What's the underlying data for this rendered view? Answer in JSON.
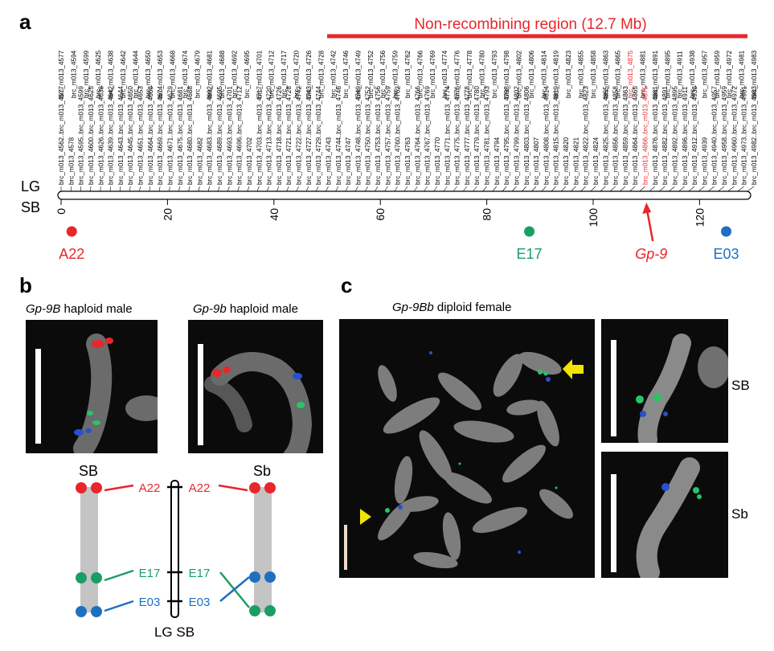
{
  "panels": {
    "a": "a",
    "b": "b",
    "c": "c"
  },
  "panel_a": {
    "region_label": "Non-recombining region (12.7 Mb)",
    "lg_label": "LG",
    "sb_label": "SB",
    "ticks": [
      "0",
      "20",
      "40",
      "60",
      "80",
      "100",
      "120"
    ],
    "markers_top_row": [
      "brc_m013_4577",
      "brc_m013_4594",
      "brc_m013_4599",
      "brc_m013_4625",
      "brc_m013_4638",
      "brc_m013_4642",
      "brc_m013_4644",
      "brc_m013_4650",
      "brc_m013_4653",
      "brc_m013_4668",
      "brc_m013_4674",
      "brc_m013_4679",
      "brc_m013_4681",
      "brc_m013_4688",
      "brc_m013_4692",
      "brc_m013_4695",
      "brc_m013_4701",
      "brc_m013_4712",
      "brc_m013_4717",
      "brc_m013_4720",
      "brc_m013_4726",
      "brc_m013_4728",
      "brc_m013_4742",
      "brc_m013_4746",
      "brc_m013_4749",
      "brc_m013_4752",
      "brc_m013_4756",
      "brc_m013_4759",
      "brc_m013_4762",
      "brc_m013_4766",
      "brc_m013_4769",
      "brc_m013_4774",
      "brc_m013_4776",
      "brc_m013_4778",
      "brc_m013_4780",
      "brc_m013_4793",
      "brc_m013_4798",
      "brc_m013_4802",
      "brc_m013_4806",
      "brc_m013_4814",
      "brc_m013_4819",
      "brc_m013_4823",
      "brc_m013_4855",
      "brc_m013_4858",
      "brc_m013_4863",
      "brc_m013_4865",
      "brc_m013_4875",
      "brc_m013_4881",
      "brc_m013_4891",
      "brc_m013_4895",
      "brc_m013_4911",
      "brc_m013_4938",
      "brc_m013_4957",
      "brc_m013_4959",
      "brc_m013_4972",
      "brc_m013_4981",
      "brc_m013_4983"
    ],
    "markers_bottom_row": [
      "brc_m013_4562..brc_m013_4577",
      "brc_m013_4578",
      "brc_m013_4595..brc_m013_4599",
      "brc_m013_4600..brc_m013_4625",
      "brc_m013_4626..brc_m013_4638",
      "brc_m013_4639..brc_m013_4642",
      "brc_m013_4643..brc_m013_4644",
      "brc_m013_4645..brc_m013_4650",
      "brc_m013_4651..brc_m013_4653",
      "brc_m013_4664..brc_m013_4668",
      "brc_m013_4669..brc_m013_4674",
      "brc_m013_4671..brc_m013_4679",
      "brc_m013_4675..brc_m013_4681",
      "brc_m013_4680..brc_m013_4688",
      "brc_m013_4682",
      "brc_m013_4683..brc_m013_4692",
      "brc_m013_4689..brc_m013_4695",
      "brc_m013_4693..brc_m013_4701",
      "brc_m013_4696..brc_m013_4712",
      "brc_m013_4702",
      "brc_m013_4703..brc_m013_4717",
      "brc_m013_4713..brc_m013_4720",
      "brc_m013_4718..brc_m013_4726",
      "brc_m013_4721..brc_m013_4728",
      "brc_m013_4722..brc_m013_4742",
      "brc_m013_4727..brc_m013_4743",
      "brc_m013_4729..brc_m013_4744",
      "brc_m013_4743",
      "brc_m013_4744..brc_m013_4746",
      "brc_m013_4747",
      "brc_m013_4748..brc_m013_4749",
      "brc_m013_4750..brc_m013_4752",
      "brc_m013_4753..brc_m013_4756",
      "brc_m013_4757..brc_m013_4759",
      "brc_m013_4760..brc_m013_4762",
      "brc_m013_4763",
      "brc_m013_4764..brc_m013_4766",
      "brc_m013_4767..brc_m013_4769",
      "brc_m013_4770",
      "brc_m013_4771..brc_m013_4774",
      "brc_m013_4775..brc_m013_4776",
      "brc_m013_4777..brc_m013_4778",
      "brc_m013_4779..brc_m013_4780",
      "brc_m013_4781..brc_m013_4793",
      "brc_m013_4794",
      "brc_m013_4795..brc_m013_4798",
      "brc_m013_4799..brc_m013_4802",
      "brc_m013_4803..brc_m013_4806",
      "brc_m013_4807",
      "brc_m013_4808..brc_m013_4814",
      "brc_m013_4815..brc_m013_4819",
      "brc_m013_4820",
      "brc_m013_4821",
      "brc_m013_4822..brc_m013_4823",
      "brc_m013_4824",
      "brc_m013_4825..brc_m013_4855",
      "brc_m013_4856..brc_m013_4858",
      "brc_m013_4859..brc_m013_4863",
      "brc_m013_4864..brc_m013_4865",
      "brc_m013_4866..brc_m013_4875",
      "brc_m013_4876..brc_m013_4881",
      "brc_m013_4882..brc_m013_4891",
      "brc_m013_4892..brc_m013_4895",
      "brc_m013_4896..brc_m013_4911",
      "brc_m013_4912..brc_m013_4938",
      "brc_m013_4939",
      "brc_m013_4940..brc_m013_4957",
      "brc_m013_4958..brc_m013_4959",
      "brc_m013_4960..brc_m013_4972",
      "brc_m013_4973..brc_m013_4981",
      "brc_m013_4982..brc_m013_4983"
    ],
    "highlight_marker": "brc_m013_4866..brc_m013_4875",
    "probes": [
      {
        "label": "A22",
        "color": "#e8262b",
        "pos_cm": 2
      },
      {
        "label": "E17",
        "color": "#1a9e64",
        "pos_cm": 88
      },
      {
        "label": "E03",
        "color": "#1f6fc1",
        "pos_cm": 125
      }
    ],
    "gene_label": "Gp-9",
    "gene_pos_cm": 110,
    "region_range_cm": [
      50,
      129
    ]
  },
  "panel_b": {
    "left_title_gene": "Gp-9B",
    "left_title_rest": " haploid male",
    "right_title_gene": "Gp-9b",
    "right_title_rest": " haploid male",
    "diagram": {
      "left_chrom": "SB",
      "right_chrom": "Sb",
      "center_label": "LG SB",
      "left_probes": [
        "A22",
        "E17",
        "E03"
      ],
      "right_probes": [
        "A22",
        "E17",
        "E03"
      ]
    }
  },
  "panel_c": {
    "title_gene": "Gp-9Bb",
    "title_rest": " diploid female",
    "inset_top_label": "SB",
    "inset_bottom_label": "Sb"
  },
  "colors": {
    "red": "#e8262b",
    "green": "#1a9e64",
    "blue": "#1f6fc1",
    "yellow": "#f2e400"
  }
}
